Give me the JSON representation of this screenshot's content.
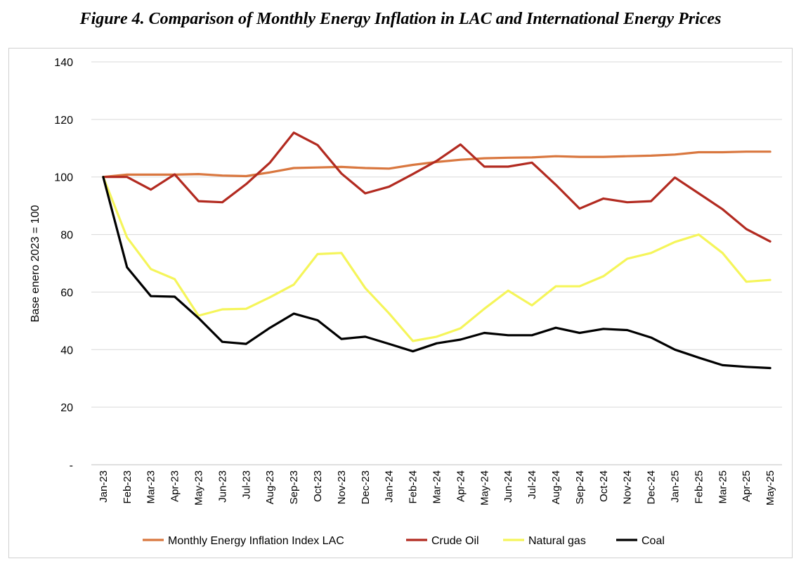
{
  "figure_title": "Figure 4. Comparison of Monthly Energy Inflation in LAC and International Energy Prices",
  "chart_data": {
    "type": "line",
    "title": "",
    "xlabel": "",
    "ylabel": "Base enero 2023 = 100",
    "ylim": [
      0,
      140
    ],
    "yticks": [
      0,
      20,
      40,
      60,
      80,
      100,
      120,
      140
    ],
    "ytick_labels": [
      "-",
      "20",
      "40",
      "60",
      "80",
      "100",
      "120",
      "140"
    ],
    "grid": true,
    "legend_position": "bottom",
    "x": [
      "Jan-23",
      "Feb-23",
      "Mar-23",
      "Apr-23",
      "May-23",
      "Jun-23",
      "Jul-23",
      "Aug-23",
      "Sep-23",
      "Oct-23",
      "Nov-23",
      "Dec-23",
      "Jan-24",
      "Feb-24",
      "Mar-24",
      "Apr-24",
      "May-24",
      "Jun-24",
      "Jul-24",
      "Aug-24",
      "Sep-24",
      "Oct-24",
      "Nov-24",
      "Dec-24",
      "Jan-25",
      "Feb-25",
      "Mar-25",
      "Apr-25",
      "May-25"
    ],
    "series": [
      {
        "name": "Monthly Energy Inflation Index LAC",
        "color": "#d9773f",
        "values": [
          100,
          100.8,
          100.8,
          100.8,
          101,
          100.5,
          100.3,
          101.6,
          103.1,
          103.3,
          103.5,
          103.1,
          102.9,
          104.2,
          105.2,
          106,
          106.5,
          106.7,
          106.8,
          107.2,
          107,
          107,
          107.2,
          107.4,
          107.8,
          108.6,
          108.6,
          108.8,
          108.8
        ]
      },
      {
        "name": "Crude Oil",
        "color": "#b22a20",
        "values": [
          100,
          100,
          95.6,
          100.9,
          91.6,
          91.2,
          97.5,
          105,
          115.4,
          111.1,
          101.2,
          94.3,
          96.6,
          101,
          105.6,
          111.3,
          103.6,
          103.6,
          105,
          97.3,
          89,
          92.5,
          91.2,
          91.6,
          99.8,
          94.3,
          88.8,
          81.9,
          77.6
        ]
      },
      {
        "name": "Natural gas",
        "color": "#f5f55a",
        "values": [
          100,
          79,
          68,
          64.5,
          51.8,
          54,
          54.2,
          58.2,
          62.6,
          73.2,
          73.6,
          61.4,
          52.6,
          43,
          44.5,
          47.4,
          54.2,
          60.5,
          55.4,
          62,
          62,
          65.5,
          71.6,
          73.6,
          77.4,
          80,
          73.6,
          63.6,
          64.2
        ]
      },
      {
        "name": "Coal",
        "color": "#000000",
        "values": [
          100,
          68.6,
          58.6,
          58.4,
          51,
          42.7,
          42,
          47.6,
          52.5,
          50.2,
          43.7,
          44.5,
          42,
          39.4,
          42.2,
          43.5,
          45.8,
          45,
          45,
          47.6,
          45.8,
          47.2,
          46.8,
          44.2,
          40,
          37.2,
          34.6,
          34,
          33.6
        ]
      }
    ]
  }
}
